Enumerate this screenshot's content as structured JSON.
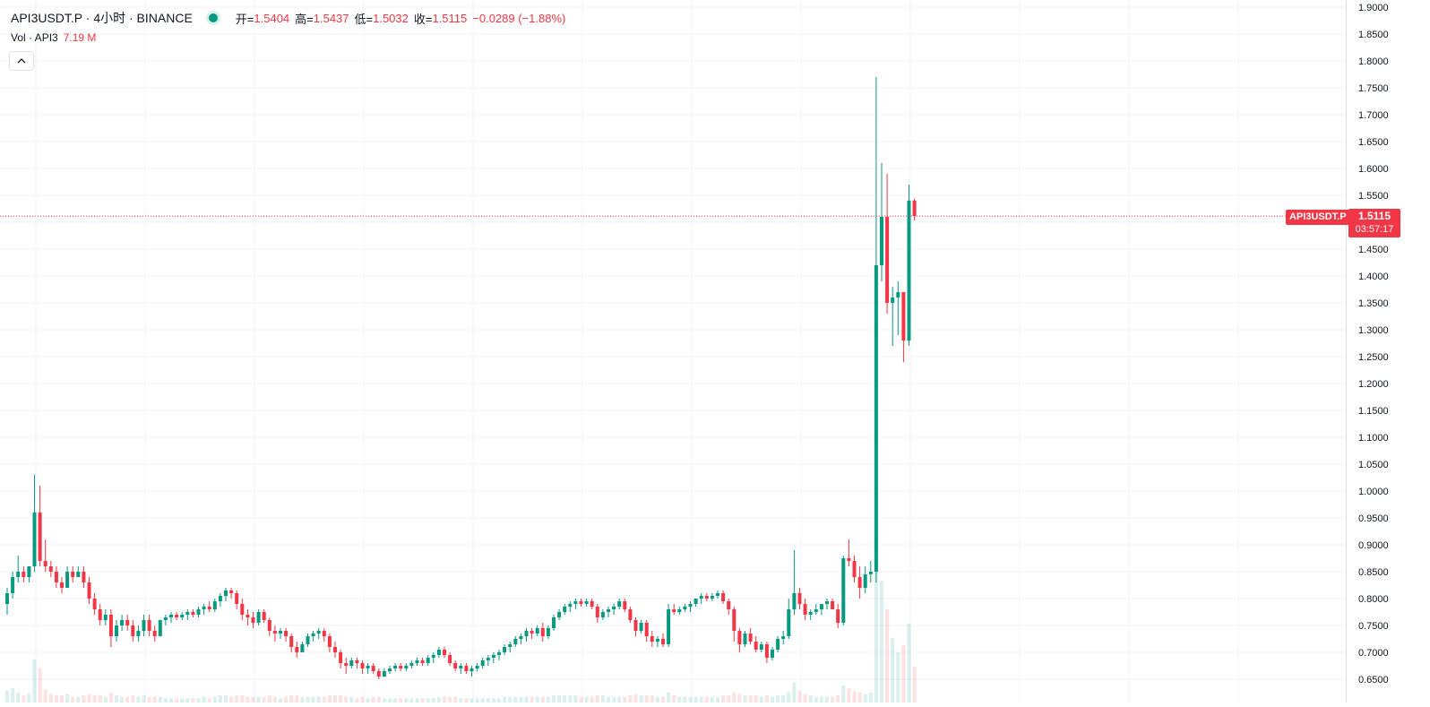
{
  "legend": {
    "symbol": "API3USDT.P · 4小时 · BINANCE",
    "open_label": "开=",
    "open": "1.5404",
    "high_label": "高=",
    "high": "1.5437",
    "low_label": "低=",
    "low": "1.5032",
    "close_label": "收=",
    "close": "1.5115",
    "change": "−0.0289 (−1.88%)"
  },
  "volume_legend": {
    "label": "Vol · API3",
    "value": "7.19 M"
  },
  "collapse_icon": "chevron-up-icon",
  "last_price": {
    "symbol_tag": "API3USDT.P",
    "price": "1.5115",
    "countdown": "03:57:17"
  },
  "colors": {
    "up": "#089981",
    "down": "#f23645",
    "grid": "#f0f3fa",
    "text": "#131722"
  },
  "chart_data": {
    "type": "candlestick",
    "interval": "4小时",
    "price_axis": {
      "ticks": [
        "1.9000",
        "1.8500",
        "1.8000",
        "1.7500",
        "1.7000",
        "1.6500",
        "1.6000",
        "1.5500",
        "1.5000",
        "1.4500",
        "1.4000",
        "1.3500",
        "1.3000",
        "1.2500",
        "1.2000",
        "1.1500",
        "1.1000",
        "1.0500",
        "1.0000",
        "0.9500",
        "0.9000",
        "0.8500",
        "0.8000",
        "0.7500",
        "0.7000",
        "0.6500"
      ],
      "range": [
        0.6475,
        1.9
      ]
    },
    "candles": [
      [
        0.79,
        0.82,
        0.77,
        0.81
      ],
      [
        0.81,
        0.85,
        0.8,
        0.84
      ],
      [
        0.84,
        0.88,
        0.83,
        0.85
      ],
      [
        0.85,
        0.86,
        0.83,
        0.84
      ],
      [
        0.84,
        0.86,
        0.83,
        0.86
      ],
      [
        0.86,
        1.03,
        0.85,
        0.96
      ],
      [
        0.96,
        1.01,
        0.86,
        0.87
      ],
      [
        0.87,
        0.91,
        0.85,
        0.86
      ],
      [
        0.86,
        0.87,
        0.84,
        0.85
      ],
      [
        0.85,
        0.86,
        0.82,
        0.83
      ],
      [
        0.83,
        0.84,
        0.81,
        0.82
      ],
      [
        0.82,
        0.86,
        0.82,
        0.85
      ],
      [
        0.85,
        0.86,
        0.83,
        0.84
      ],
      [
        0.84,
        0.86,
        0.84,
        0.85
      ],
      [
        0.85,
        0.86,
        0.82,
        0.83
      ],
      [
        0.83,
        0.84,
        0.79,
        0.8
      ],
      [
        0.8,
        0.81,
        0.77,
        0.78
      ],
      [
        0.78,
        0.79,
        0.75,
        0.76
      ],
      [
        0.76,
        0.78,
        0.75,
        0.77
      ],
      [
        0.77,
        0.78,
        0.71,
        0.73
      ],
      [
        0.73,
        0.76,
        0.72,
        0.75
      ],
      [
        0.75,
        0.77,
        0.74,
        0.76
      ],
      [
        0.76,
        0.77,
        0.74,
        0.75
      ],
      [
        0.75,
        0.76,
        0.72,
        0.73
      ],
      [
        0.73,
        0.75,
        0.72,
        0.74
      ],
      [
        0.74,
        0.77,
        0.73,
        0.76
      ],
      [
        0.76,
        0.77,
        0.73,
        0.74
      ],
      [
        0.74,
        0.75,
        0.72,
        0.73
      ],
      [
        0.73,
        0.76,
        0.73,
        0.76
      ],
      [
        0.76,
        0.77,
        0.75,
        0.765
      ],
      [
        0.765,
        0.775,
        0.755,
        0.77
      ],
      [
        0.77,
        0.775,
        0.76,
        0.765
      ],
      [
        0.765,
        0.775,
        0.76,
        0.77
      ],
      [
        0.77,
        0.78,
        0.76,
        0.775
      ],
      [
        0.775,
        0.78,
        0.765,
        0.77
      ],
      [
        0.77,
        0.785,
        0.765,
        0.78
      ],
      [
        0.78,
        0.79,
        0.77,
        0.785
      ],
      [
        0.785,
        0.795,
        0.775,
        0.78
      ],
      [
        0.78,
        0.8,
        0.775,
        0.795
      ],
      [
        0.795,
        0.81,
        0.785,
        0.805
      ],
      [
        0.805,
        0.82,
        0.795,
        0.815
      ],
      [
        0.815,
        0.82,
        0.8,
        0.81
      ],
      [
        0.81,
        0.815,
        0.78,
        0.79
      ],
      [
        0.79,
        0.8,
        0.76,
        0.77
      ],
      [
        0.77,
        0.78,
        0.75,
        0.765
      ],
      [
        0.765,
        0.775,
        0.745,
        0.755
      ],
      [
        0.755,
        0.78,
        0.75,
        0.775
      ],
      [
        0.775,
        0.78,
        0.755,
        0.76
      ],
      [
        0.76,
        0.765,
        0.73,
        0.74
      ],
      [
        0.74,
        0.75,
        0.72,
        0.735
      ],
      [
        0.735,
        0.745,
        0.725,
        0.74
      ],
      [
        0.74,
        0.745,
        0.72,
        0.73
      ],
      [
        0.73,
        0.735,
        0.7,
        0.71
      ],
      [
        0.71,
        0.72,
        0.69,
        0.7
      ],
      [
        0.7,
        0.72,
        0.7,
        0.715
      ],
      [
        0.715,
        0.735,
        0.71,
        0.73
      ],
      [
        0.73,
        0.74,
        0.72,
        0.735
      ],
      [
        0.735,
        0.745,
        0.725,
        0.74
      ],
      [
        0.74,
        0.745,
        0.72,
        0.73
      ],
      [
        0.73,
        0.735,
        0.7,
        0.71
      ],
      [
        0.71,
        0.72,
        0.69,
        0.7
      ],
      [
        0.7,
        0.705,
        0.67,
        0.68
      ],
      [
        0.68,
        0.69,
        0.66,
        0.675
      ],
      [
        0.675,
        0.69,
        0.67,
        0.685
      ],
      [
        0.685,
        0.69,
        0.67,
        0.68
      ],
      [
        0.68,
        0.685,
        0.66,
        0.67
      ],
      [
        0.67,
        0.68,
        0.66,
        0.675
      ],
      [
        0.675,
        0.68,
        0.66,
        0.665
      ],
      [
        0.665,
        0.67,
        0.65,
        0.655
      ],
      [
        0.655,
        0.67,
        0.655,
        0.665
      ],
      [
        0.665,
        0.675,
        0.66,
        0.67
      ],
      [
        0.67,
        0.68,
        0.665,
        0.675
      ],
      [
        0.675,
        0.68,
        0.665,
        0.67
      ],
      [
        0.67,
        0.68,
        0.665,
        0.675
      ],
      [
        0.675,
        0.685,
        0.67,
        0.68
      ],
      [
        0.68,
        0.69,
        0.675,
        0.685
      ],
      [
        0.685,
        0.69,
        0.675,
        0.68
      ],
      [
        0.68,
        0.695,
        0.675,
        0.69
      ],
      [
        0.69,
        0.7,
        0.68,
        0.695
      ],
      [
        0.695,
        0.71,
        0.69,
        0.705
      ],
      [
        0.705,
        0.71,
        0.69,
        0.695
      ],
      [
        0.695,
        0.7,
        0.675,
        0.68
      ],
      [
        0.68,
        0.685,
        0.665,
        0.67
      ],
      [
        0.67,
        0.68,
        0.66,
        0.675
      ],
      [
        0.675,
        0.68,
        0.66,
        0.665
      ],
      [
        0.665,
        0.675,
        0.655,
        0.67
      ],
      [
        0.67,
        0.68,
        0.665,
        0.675
      ],
      [
        0.675,
        0.69,
        0.67,
        0.685
      ],
      [
        0.685,
        0.695,
        0.675,
        0.69
      ],
      [
        0.69,
        0.7,
        0.68,
        0.695
      ],
      [
        0.695,
        0.705,
        0.685,
        0.7
      ],
      [
        0.7,
        0.715,
        0.695,
        0.71
      ],
      [
        0.71,
        0.72,
        0.7,
        0.715
      ],
      [
        0.715,
        0.73,
        0.71,
        0.725
      ],
      [
        0.725,
        0.735,
        0.715,
        0.73
      ],
      [
        0.73,
        0.745,
        0.72,
        0.74
      ],
      [
        0.74,
        0.745,
        0.725,
        0.735
      ],
      [
        0.735,
        0.75,
        0.73,
        0.745
      ],
      [
        0.745,
        0.755,
        0.72,
        0.73
      ],
      [
        0.73,
        0.75,
        0.725,
        0.745
      ],
      [
        0.745,
        0.77,
        0.74,
        0.765
      ],
      [
        0.765,
        0.78,
        0.76,
        0.775
      ],
      [
        0.775,
        0.79,
        0.77,
        0.785
      ],
      [
        0.785,
        0.795,
        0.775,
        0.79
      ],
      [
        0.79,
        0.8,
        0.78,
        0.795
      ],
      [
        0.795,
        0.8,
        0.785,
        0.79
      ],
      [
        0.79,
        0.8,
        0.785,
        0.795
      ],
      [
        0.795,
        0.8,
        0.78,
        0.785
      ],
      [
        0.785,
        0.79,
        0.755,
        0.765
      ],
      [
        0.765,
        0.78,
        0.76,
        0.775
      ],
      [
        0.775,
        0.785,
        0.765,
        0.78
      ],
      [
        0.78,
        0.79,
        0.77,
        0.785
      ],
      [
        0.785,
        0.8,
        0.78,
        0.795
      ],
      [
        0.795,
        0.8,
        0.775,
        0.78
      ],
      [
        0.78,
        0.785,
        0.755,
        0.76
      ],
      [
        0.76,
        0.765,
        0.73,
        0.74
      ],
      [
        0.74,
        0.76,
        0.735,
        0.755
      ],
      [
        0.755,
        0.76,
        0.72,
        0.73
      ],
      [
        0.73,
        0.74,
        0.71,
        0.72
      ],
      [
        0.72,
        0.73,
        0.71,
        0.725
      ],
      [
        0.725,
        0.735,
        0.71,
        0.715
      ],
      [
        0.715,
        0.79,
        0.71,
        0.78
      ],
      [
        0.78,
        0.79,
        0.77,
        0.775
      ],
      [
        0.775,
        0.785,
        0.77,
        0.78
      ],
      [
        0.78,
        0.79,
        0.775,
        0.785
      ],
      [
        0.785,
        0.795,
        0.775,
        0.79
      ],
      [
        0.79,
        0.8,
        0.785,
        0.8
      ],
      [
        0.8,
        0.81,
        0.79,
        0.805
      ],
      [
        0.805,
        0.81,
        0.795,
        0.8
      ],
      [
        0.8,
        0.81,
        0.795,
        0.805
      ],
      [
        0.805,
        0.815,
        0.8,
        0.81
      ],
      [
        0.81,
        0.815,
        0.79,
        0.795
      ],
      [
        0.795,
        0.8,
        0.77,
        0.78
      ],
      [
        0.78,
        0.785,
        0.72,
        0.74
      ],
      [
        0.74,
        0.745,
        0.7,
        0.715
      ],
      [
        0.715,
        0.74,
        0.71,
        0.735
      ],
      [
        0.735,
        0.745,
        0.715,
        0.72
      ],
      [
        0.72,
        0.73,
        0.7,
        0.705
      ],
      [
        0.705,
        0.72,
        0.7,
        0.715
      ],
      [
        0.715,
        0.72,
        0.68,
        0.69
      ],
      [
        0.69,
        0.71,
        0.685,
        0.705
      ],
      [
        0.705,
        0.73,
        0.7,
        0.725
      ],
      [
        0.725,
        0.74,
        0.715,
        0.73
      ],
      [
        0.73,
        0.8,
        0.725,
        0.78
      ],
      [
        0.78,
        0.89,
        0.77,
        0.81
      ],
      [
        0.81,
        0.82,
        0.78,
        0.79
      ],
      [
        0.79,
        0.8,
        0.76,
        0.77
      ],
      [
        0.77,
        0.78,
        0.76,
        0.775
      ],
      [
        0.775,
        0.79,
        0.77,
        0.78
      ],
      [
        0.78,
        0.79,
        0.77,
        0.79
      ],
      [
        0.79,
        0.8,
        0.78,
        0.795
      ],
      [
        0.795,
        0.8,
        0.78,
        0.78
      ],
      [
        0.78,
        0.79,
        0.745,
        0.755
      ],
      [
        0.755,
        0.88,
        0.75,
        0.875
      ],
      [
        0.875,
        0.91,
        0.86,
        0.87
      ],
      [
        0.87,
        0.88,
        0.83,
        0.84
      ],
      [
        0.84,
        0.86,
        0.8,
        0.82
      ],
      [
        0.82,
        0.86,
        0.81,
        0.845
      ],
      [
        0.845,
        0.87,
        0.83,
        0.85
      ],
      [
        0.85,
        1.77,
        0.83,
        1.42
      ],
      [
        1.42,
        1.61,
        1.39,
        1.51
      ],
      [
        1.51,
        1.59,
        1.33,
        1.35
      ],
      [
        1.35,
        1.38,
        1.27,
        1.36
      ],
      [
        1.36,
        1.39,
        1.29,
        1.37
      ],
      [
        1.37,
        1.37,
        1.24,
        1.28
      ],
      [
        1.28,
        1.57,
        1.27,
        1.5404
      ],
      [
        1.5404,
        1.5437,
        1.5032,
        1.5115
      ]
    ],
    "volume": [
      0.08,
      0.1,
      0.07,
      0.05,
      0.06,
      0.3,
      0.24,
      0.09,
      0.06,
      0.05,
      0.05,
      0.06,
      0.04,
      0.04,
      0.05,
      0.06,
      0.05,
      0.05,
      0.04,
      0.07,
      0.05,
      0.04,
      0.04,
      0.05,
      0.04,
      0.05,
      0.04,
      0.04,
      0.04,
      0.03,
      0.03,
      0.03,
      0.03,
      0.03,
      0.03,
      0.03,
      0.04,
      0.03,
      0.04,
      0.05,
      0.05,
      0.04,
      0.05,
      0.05,
      0.04,
      0.04,
      0.04,
      0.04,
      0.05,
      0.04,
      0.03,
      0.04,
      0.05,
      0.05,
      0.04,
      0.04,
      0.04,
      0.04,
      0.04,
      0.05,
      0.05,
      0.05,
      0.04,
      0.04,
      0.03,
      0.04,
      0.03,
      0.04,
      0.04,
      0.03,
      0.03,
      0.03,
      0.03,
      0.03,
      0.03,
      0.03,
      0.03,
      0.03,
      0.03,
      0.04,
      0.04,
      0.04,
      0.04,
      0.03,
      0.03,
      0.03,
      0.03,
      0.03,
      0.03,
      0.03,
      0.03,
      0.04,
      0.04,
      0.04,
      0.04,
      0.04,
      0.04,
      0.04,
      0.04,
      0.04,
      0.05,
      0.05,
      0.05,
      0.05,
      0.05,
      0.04,
      0.04,
      0.04,
      0.05,
      0.05,
      0.04,
      0.04,
      0.04,
      0.04,
      0.05,
      0.06,
      0.05,
      0.05,
      0.05,
      0.04,
      0.04,
      0.07,
      0.05,
      0.04,
      0.04,
      0.04,
      0.04,
      0.04,
      0.04,
      0.04,
      0.04,
      0.05,
      0.05,
      0.07,
      0.06,
      0.05,
      0.05,
      0.05,
      0.04,
      0.05,
      0.04,
      0.05,
      0.05,
      0.07,
      0.14,
      0.08,
      0.06,
      0.05,
      0.04,
      0.04,
      0.04,
      0.04,
      0.05,
      0.12,
      0.1,
      0.08,
      0.07,
      0.06,
      0.07,
      1.0,
      0.85,
      0.65,
      0.45,
      0.35,
      0.4,
      0.55,
      0.25
    ]
  }
}
